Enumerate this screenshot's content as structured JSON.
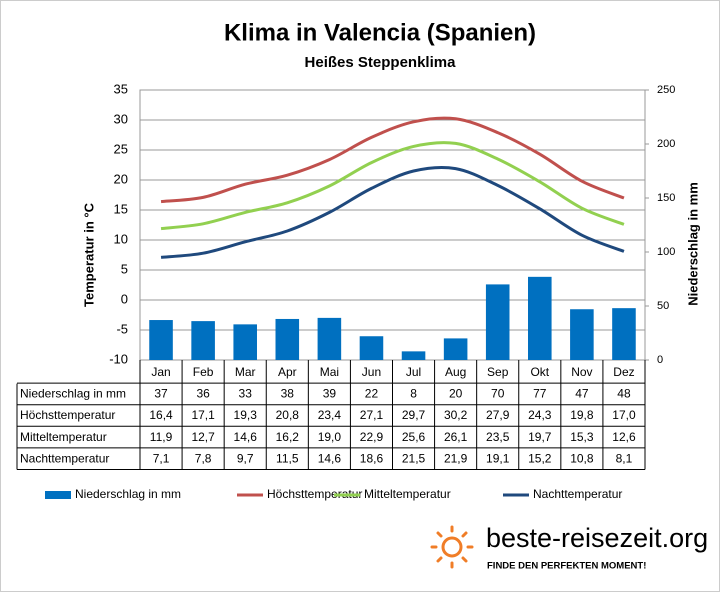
{
  "chart_data": {
    "type": "combo",
    "title": "Klima in Valencia (Spanien)",
    "subtitle": "Heißes Steppenklima",
    "ylabel": "Temperatur in °C",
    "y2label": "Niederschlag in mm",
    "categories": [
      "Jan",
      "Feb",
      "Mar",
      "Apr",
      "Mai",
      "Jun",
      "Jul",
      "Aug",
      "Sep",
      "Okt",
      "Nov",
      "Dez"
    ],
    "series": [
      {
        "name": "Niederschlag in mm",
        "type": "bar",
        "axis": "y2",
        "color": "#0070c0",
        "values": [
          37,
          36,
          33,
          38,
          39,
          22,
          8,
          20,
          70,
          77,
          47,
          48
        ]
      },
      {
        "name": "Höchsttemperatur",
        "type": "line",
        "color": "#c0504d",
        "values": [
          16.4,
          17.1,
          19.3,
          20.8,
          23.4,
          27.1,
          29.7,
          30.2,
          27.9,
          24.3,
          19.8,
          17.0
        ],
        "value_labels": [
          "16,4",
          "17,1",
          "19,3",
          "20,8",
          "23,4",
          "27,1",
          "29,7",
          "30,2",
          "27,9",
          "24,3",
          "19,8",
          "17,0"
        ]
      },
      {
        "name": "Mitteltemperatur",
        "type": "line",
        "color": "#92d050",
        "values": [
          11.9,
          12.7,
          14.6,
          16.2,
          19.0,
          22.9,
          25.6,
          26.1,
          23.5,
          19.7,
          15.3,
          12.6
        ],
        "value_labels": [
          "11,9",
          "12,7",
          "14,6",
          "16,2",
          "19,0",
          "22,9",
          "25,6",
          "26,1",
          "23,5",
          "19,7",
          "15,3",
          "12,6"
        ]
      },
      {
        "name": "Nachttemperatur",
        "type": "line",
        "color": "#1f497d",
        "values": [
          7.1,
          7.8,
          9.7,
          11.5,
          14.6,
          18.6,
          21.5,
          21.9,
          19.1,
          15.2,
          10.8,
          8.1
        ],
        "value_labels": [
          "7,1",
          "7,8",
          "9,7",
          "11,5",
          "14,6",
          "18,6",
          "21,5",
          "21,9",
          "19,1",
          "15,2",
          "10,8",
          "8,1"
        ]
      }
    ],
    "ylim": [
      -10,
      35
    ],
    "yticks": [
      -10,
      -5,
      0,
      5,
      10,
      15,
      20,
      25,
      30,
      35
    ],
    "y2lim": [
      0,
      250
    ],
    "y2ticks": [
      0,
      50,
      100,
      150,
      200,
      250
    ],
    "grid": true
  },
  "logo": {
    "name": "beste-reisezeit.org",
    "slogan": "FINDE DEN PERFEKTEN MOMENT!"
  }
}
